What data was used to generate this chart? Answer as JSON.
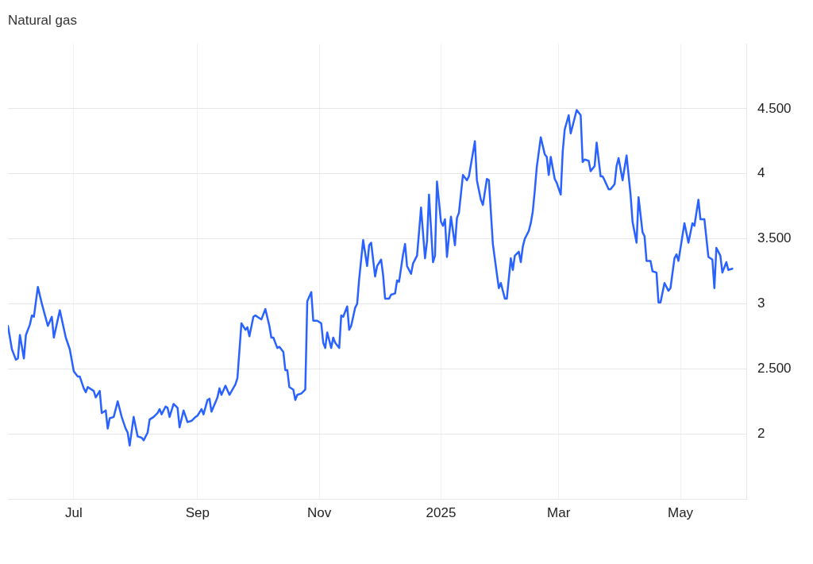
{
  "chart_data": {
    "type": "line",
    "title": "Natural gas",
    "x": [
      "2024-05-29",
      "2024-05-31",
      "2024-06-02",
      "2024-06-03",
      "2024-06-04",
      "2024-06-06",
      "2024-06-07",
      "2024-06-09",
      "2024-06-10",
      "2024-06-11",
      "2024-06-13",
      "2024-06-15",
      "2024-06-18",
      "2024-06-20",
      "2024-06-21",
      "2024-06-24",
      "2024-06-27",
      "2024-06-29",
      "2024-07-01",
      "2024-07-03",
      "2024-07-04",
      "2024-07-06",
      "2024-07-07",
      "2024-07-08",
      "2024-07-11",
      "2024-07-12",
      "2024-07-14",
      "2024-07-15",
      "2024-07-17",
      "2024-07-18",
      "2024-07-19",
      "2024-07-21",
      "2024-07-23",
      "2024-07-25",
      "2024-07-27",
      "2024-07-28",
      "2024-07-29",
      "2024-07-31",
      "2024-08-02",
      "2024-08-04",
      "2024-08-05",
      "2024-08-07",
      "2024-08-08",
      "2024-08-10",
      "2024-08-12",
      "2024-08-13",
      "2024-08-14",
      "2024-08-16",
      "2024-08-17",
      "2024-08-18",
      "2024-08-20",
      "2024-08-22",
      "2024-08-23",
      "2024-08-25",
      "2024-08-27",
      "2024-08-29",
      "2024-08-31",
      "2024-09-01",
      "2024-09-03",
      "2024-09-04",
      "2024-09-06",
      "2024-09-07",
      "2024-09-08",
      "2024-09-11",
      "2024-09-12",
      "2024-09-13",
      "2024-09-15",
      "2024-09-17",
      "2024-09-20",
      "2024-09-21",
      "2024-09-23",
      "2024-09-25",
      "2024-09-26",
      "2024-09-27",
      "2024-09-29",
      "2024-09-30",
      "2024-10-02",
      "2024-10-03",
      "2024-10-05",
      "2024-10-07",
      "2024-10-08",
      "2024-10-09",
      "2024-10-11",
      "2024-10-12",
      "2024-10-14",
      "2024-10-15",
      "2024-10-16",
      "2024-10-17",
      "2024-10-19",
      "2024-10-20",
      "2024-10-21",
      "2024-10-23",
      "2024-10-25",
      "2024-10-26",
      "2024-10-28",
      "2024-10-29",
      "2024-10-31",
      "2024-11-02",
      "2024-11-03",
      "2024-11-04",
      "2024-11-05",
      "2024-11-07",
      "2024-11-08",
      "2024-11-09",
      "2024-11-11",
      "2024-11-12",
      "2024-11-13",
      "2024-11-15",
      "2024-11-16",
      "2024-11-17",
      "2024-11-19",
      "2024-11-20",
      "2024-11-21",
      "2024-11-23",
      "2024-11-25",
      "2024-11-26",
      "2024-11-27",
      "2024-11-29",
      "2024-11-30",
      "2024-12-02",
      "2024-12-03",
      "2024-12-04",
      "2024-12-06",
      "2024-12-07",
      "2024-12-09",
      "2024-12-10",
      "2024-12-11",
      "2024-12-13",
      "2024-12-14",
      "2024-12-15",
      "2024-12-17",
      "2024-12-18",
      "2024-12-20",
      "2024-12-21",
      "2024-12-22",
      "2024-12-24",
      "2024-12-25",
      "2024-12-26",
      "2024-12-28",
      "2024-12-29",
      "2024-12-30",
      "2025-01-01",
      "2025-01-02",
      "2025-01-03",
      "2025-01-04",
      "2025-01-06",
      "2025-01-08",
      "2025-01-09",
      "2025-01-10",
      "2025-01-12",
      "2025-01-14",
      "2025-01-15",
      "2025-01-16",
      "2025-01-18",
      "2025-01-19",
      "2025-01-21",
      "2025-01-22",
      "2025-01-24",
      "2025-01-25",
      "2025-01-27",
      "2025-01-29",
      "2025-01-30",
      "2025-01-31",
      "2025-02-02",
      "2025-02-03",
      "2025-02-05",
      "2025-02-06",
      "2025-02-07",
      "2025-02-09",
      "2025-02-10",
      "2025-02-11",
      "2025-02-12",
      "2025-02-14",
      "2025-02-15",
      "2025-02-16",
      "2025-02-17",
      "2025-02-18",
      "2025-02-20",
      "2025-02-22",
      "2025-02-23",
      "2025-02-24",
      "2025-02-25",
      "2025-02-27",
      "2025-02-28",
      "2025-03-02",
      "2025-03-03",
      "2025-03-04",
      "2025-03-06",
      "2025-03-07",
      "2025-03-10",
      "2025-03-12",
      "2025-03-13",
      "2025-03-14",
      "2025-03-16",
      "2025-03-17",
      "2025-03-19",
      "2025-03-20",
      "2025-03-22",
      "2025-03-23",
      "2025-03-24",
      "2025-03-26",
      "2025-03-27",
      "2025-03-29",
      "2025-03-30",
      "2025-03-31",
      "2025-04-02",
      "2025-04-04",
      "2025-04-06",
      "2025-04-07",
      "2025-04-09",
      "2025-04-10",
      "2025-04-12",
      "2025-04-13",
      "2025-04-14",
      "2025-04-16",
      "2025-04-17",
      "2025-04-19",
      "2025-04-20",
      "2025-04-21",
      "2025-04-23",
      "2025-04-25",
      "2025-04-26",
      "2025-04-28",
      "2025-04-29",
      "2025-04-30",
      "2025-05-03",
      "2025-05-05",
      "2025-05-07",
      "2025-05-08",
      "2025-05-10",
      "2025-05-11",
      "2025-05-13",
      "2025-05-15",
      "2025-05-17",
      "2025-05-18",
      "2025-05-19",
      "2025-05-21",
      "2025-05-22",
      "2025-05-24",
      "2025-05-25",
      "2025-05-27"
    ],
    "values": [
      2.83,
      2.65,
      2.57,
      2.58,
      2.76,
      2.58,
      2.76,
      2.84,
      2.91,
      2.9,
      3.13,
      3.0,
      2.83,
      2.9,
      2.74,
      2.95,
      2.74,
      2.65,
      2.48,
      2.44,
      2.44,
      2.35,
      2.32,
      2.36,
      2.33,
      2.28,
      2.33,
      2.16,
      2.18,
      2.04,
      2.12,
      2.13,
      2.25,
      2.13,
      2.04,
      2.01,
      1.91,
      2.13,
      1.98,
      1.97,
      1.95,
      2.01,
      2.11,
      2.13,
      2.16,
      2.19,
      2.15,
      2.21,
      2.2,
      2.13,
      2.23,
      2.2,
      2.05,
      2.18,
      2.09,
      2.1,
      2.13,
      2.14,
      2.19,
      2.15,
      2.26,
      2.27,
      2.17,
      2.28,
      2.35,
      2.3,
      2.37,
      2.3,
      2.38,
      2.43,
      2.85,
      2.8,
      2.82,
      2.75,
      2.9,
      2.91,
      2.89,
      2.88,
      2.96,
      2.83,
      2.74,
      2.74,
      2.66,
      2.67,
      2.63,
      2.49,
      2.49,
      2.36,
      2.34,
      2.26,
      2.3,
      2.31,
      2.34,
      3.02,
      3.09,
      2.87,
      2.87,
      2.85,
      2.7,
      2.66,
      2.78,
      2.66,
      2.74,
      2.7,
      2.66,
      2.91,
      2.9,
      2.98,
      2.8,
      2.83,
      2.97,
      3.0,
      3.19,
      3.49,
      3.29,
      3.45,
      3.47,
      3.21,
      3.29,
      3.34,
      3.22,
      3.04,
      3.04,
      3.07,
      3.08,
      3.18,
      3.17,
      3.38,
      3.46,
      3.29,
      3.23,
      3.31,
      3.37,
      3.55,
      3.74,
      3.35,
      3.48,
      3.84,
      3.32,
      3.37,
      3.94,
      3.63,
      3.6,
      3.65,
      3.36,
      3.67,
      3.45,
      3.66,
      3.7,
      3.99,
      3.95,
      3.98,
      4.07,
      4.25,
      3.95,
      3.8,
      3.76,
      3.96,
      3.95,
      3.46,
      3.23,
      3.12,
      3.16,
      3.04,
      3.04,
      3.35,
      3.26,
      3.37,
      3.4,
      3.32,
      3.44,
      3.5,
      3.56,
      3.62,
      3.71,
      3.87,
      4.05,
      4.28,
      4.15,
      4.13,
      3.99,
      4.13,
      3.96,
      3.93,
      3.84,
      4.17,
      4.34,
      4.45,
      4.31,
      4.49,
      4.45,
      4.09,
      4.11,
      4.1,
      4.02,
      4.06,
      4.24,
      3.98,
      3.98,
      3.95,
      3.88,
      3.88,
      3.92,
      4.06,
      4.12,
      3.95,
      4.14,
      3.84,
      3.63,
      3.47,
      3.82,
      3.55,
      3.52,
      3.33,
      3.33,
      3.25,
      3.24,
      3.01,
      3.01,
      3.16,
      3.1,
      3.12,
      3.35,
      3.38,
      3.33,
      3.62,
      3.47,
      3.62,
      3.6,
      3.8,
      3.65,
      3.65,
      3.36,
      3.34,
      3.12,
      3.43,
      3.37,
      3.24,
      3.32,
      3.26,
      3.27
    ],
    "color": "#2962ff",
    "xlim": [
      "2024-05-29",
      "2025-06-03"
    ],
    "xticks": [
      {
        "value": "2024-07-01",
        "label": "Jul"
      },
      {
        "value": "2024-09-01",
        "label": "Sep"
      },
      {
        "value": "2024-11-01",
        "label": "Nov"
      },
      {
        "value": "2025-01-01",
        "label": "2025"
      },
      {
        "value": "2025-03-01",
        "label": "Mar"
      },
      {
        "value": "2025-05-01",
        "label": "May"
      }
    ],
    "ylim": [
      1.5,
      5
    ],
    "yticks": [
      2,
      {
        "value": 2.5,
        "label": "2.500"
      },
      3,
      {
        "value": 3.5,
        "label": "3.500"
      },
      4,
      {
        "value": 4.5,
        "label": "4.500"
      }
    ],
    "grid": true,
    "line_style": "solid"
  }
}
